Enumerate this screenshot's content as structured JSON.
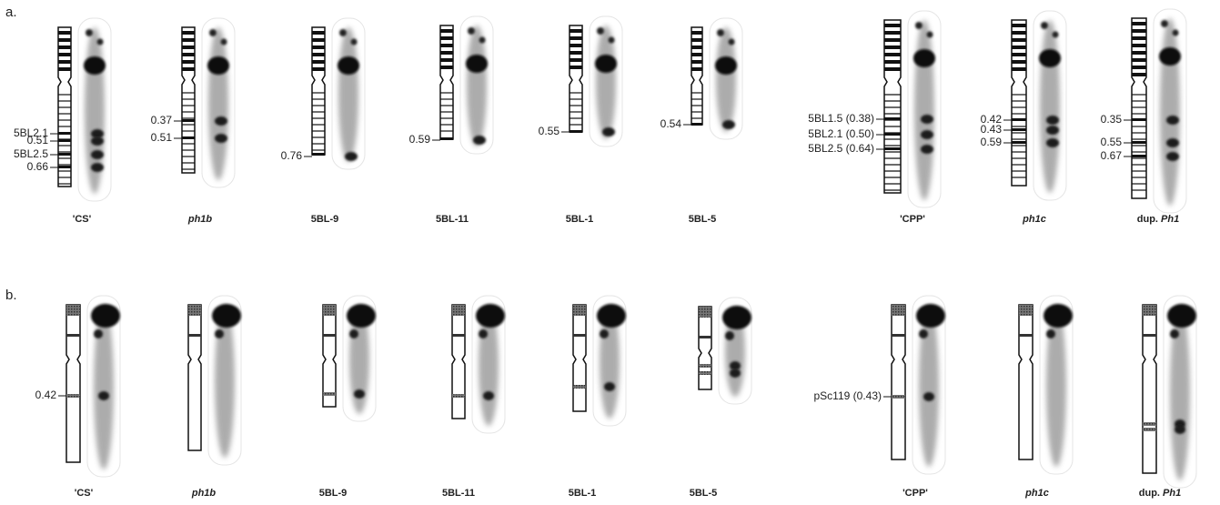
{
  "panels": [
    {
      "label": "a.",
      "items": [
        {
          "name": "'CS'",
          "markers": [
            "5BL2.1",
            "0.51",
            "5BL2.5",
            "0.66"
          ]
        },
        {
          "name": "ph1b",
          "italic": true,
          "markers": [
            "0.37",
            "0.51"
          ]
        },
        {
          "name": "5BL-9",
          "markers": [
            "0.76"
          ]
        },
        {
          "name": "5BL-11",
          "markers": [
            "0.59"
          ]
        },
        {
          "name": "5BL-1",
          "markers": [
            "0.55"
          ]
        },
        {
          "name": "5BL-5",
          "markers": [
            "0.54"
          ]
        },
        {
          "name": "'CPP'",
          "markers": [
            "5BL1.5 (0.38)",
            "5BL2.1 (0.50)",
            "5BL2.5 (0.64)"
          ]
        },
        {
          "name": "ph1c",
          "italic": true,
          "markers": [
            "0.42",
            "0.43",
            "0.59"
          ]
        },
        {
          "name_prefix": "dup.",
          "name": "Ph1",
          "italic": true,
          "markers": [
            "0.35",
            "0.55",
            "0.67"
          ]
        }
      ]
    },
    {
      "label": "b.",
      "items": [
        {
          "name": "'CS'",
          "markers": [
            "0.42"
          ]
        },
        {
          "name": "ph1b",
          "italic": true,
          "markers": []
        },
        {
          "name": "5BL-9",
          "markers": []
        },
        {
          "name": "5BL-11",
          "markers": []
        },
        {
          "name": "5BL-1",
          "markers": []
        },
        {
          "name": "5BL-5",
          "markers": []
        },
        {
          "name": "'CPP'",
          "markers": [
            "pSc119 (0.43)"
          ]
        },
        {
          "name": "ph1c",
          "italic": true,
          "markers": []
        },
        {
          "name_prefix": "dup.",
          "name": "Ph1",
          "italic": true,
          "markers": []
        }
      ]
    }
  ]
}
